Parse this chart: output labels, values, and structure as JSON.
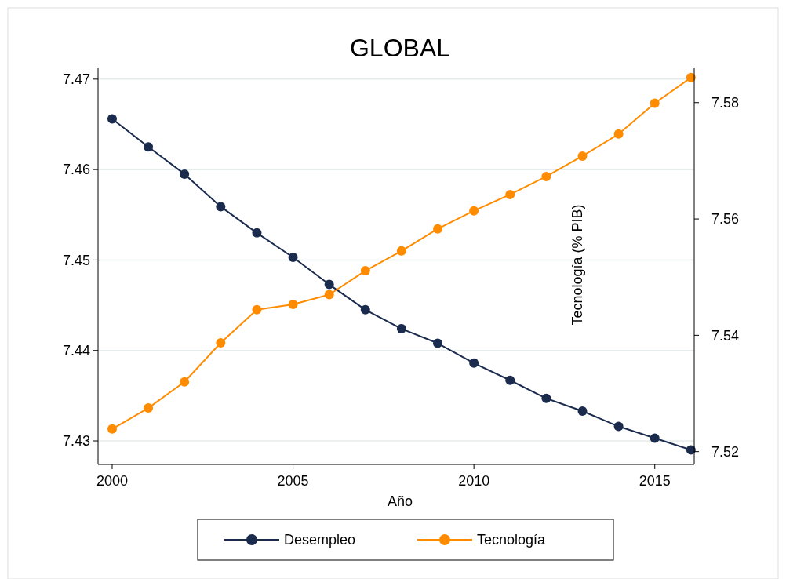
{
  "chart_data": {
    "type": "line",
    "title": "GLOBAL",
    "xlabel": "Año",
    "y2label": "Tecnología (% PIB)",
    "x": [
      2000,
      2001,
      2002,
      2003,
      2004,
      2005,
      2006,
      2007,
      2008,
      2009,
      2010,
      2011,
      2012,
      2013,
      2014,
      2015,
      2016
    ],
    "series": [
      {
        "name": "Desempleo",
        "color": "#1a2b4d",
        "values": [
          7.4656,
          7.4625,
          7.4595,
          7.4559,
          7.453,
          7.4503,
          7.4473,
          7.4445,
          7.4424,
          7.4408,
          7.4386,
          7.4367,
          7.4347,
          7.4333,
          7.4316,
          7.4303,
          7.429
        ]
      },
      {
        "name": "Tecnología",
        "color": "#ff8c00",
        "axis": "y2",
        "values": [
          7.5239,
          7.5275,
          7.532,
          7.5387,
          7.5444,
          7.5453,
          7.547,
          7.5511,
          7.5545,
          7.5583,
          7.5614,
          7.5642,
          7.5673,
          7.5708,
          7.5746,
          7.5799,
          7.5843
        ]
      }
    ],
    "xlim": [
      1999.61,
      2016.09
    ],
    "xticks": [
      2000,
      2005,
      2010,
      2015
    ],
    "ylim": [
      7.4274,
      7.4712
    ],
    "yticks": [
      7.43,
      7.44,
      7.45,
      7.46,
      7.47
    ],
    "y2lim": [
      7.5178,
      7.5859
    ],
    "y2ticks": [
      7.52,
      7.54,
      7.56,
      7.58
    ],
    "grid": "y",
    "legend": "bottom",
    "marker": "circle",
    "line_style": "solid"
  }
}
